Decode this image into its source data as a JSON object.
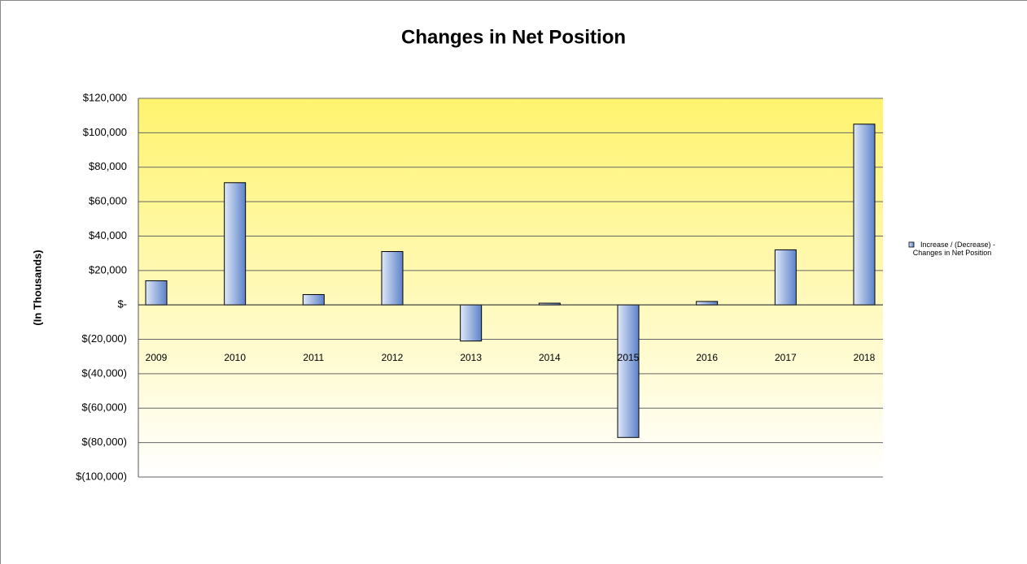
{
  "chart_data": {
    "type": "bar",
    "title": "Changes in Net Position",
    "y_label": "(In Thousands)",
    "categories": [
      "2009",
      "2010",
      "2011",
      "2012",
      "2013",
      "2014",
      "2015",
      "2016",
      "2017",
      "2018"
    ],
    "series": [
      {
        "name": "Increase / (Decrease) - Changes in Net Position",
        "color": "#6f95d6",
        "values": [
          14000,
          71000,
          6000,
          31000,
          -21000,
          1000,
          -77000,
          2000,
          32000,
          105000
        ]
      }
    ],
    "ylim": [
      -100000,
      120000
    ],
    "yticks": [
      {
        "value": -100000,
        "label": "$(100,000)"
      },
      {
        "value": -80000,
        "label": "$(80,000)"
      },
      {
        "value": -60000,
        "label": "$(60,000)"
      },
      {
        "value": -40000,
        "label": "$(40,000)"
      },
      {
        "value": -20000,
        "label": "$(20,000)"
      },
      {
        "value": 0,
        "label": "$-"
      },
      {
        "value": 20000,
        "label": "$20,000"
      },
      {
        "value": 40000,
        "label": "$40,000"
      },
      {
        "value": 60000,
        "label": "$60,000"
      },
      {
        "value": 80000,
        "label": "$80,000"
      },
      {
        "value": 100000,
        "label": "$100,000"
      },
      {
        "value": 120000,
        "label": "$120,000"
      }
    ],
    "grid": true,
    "legend": "right"
  }
}
